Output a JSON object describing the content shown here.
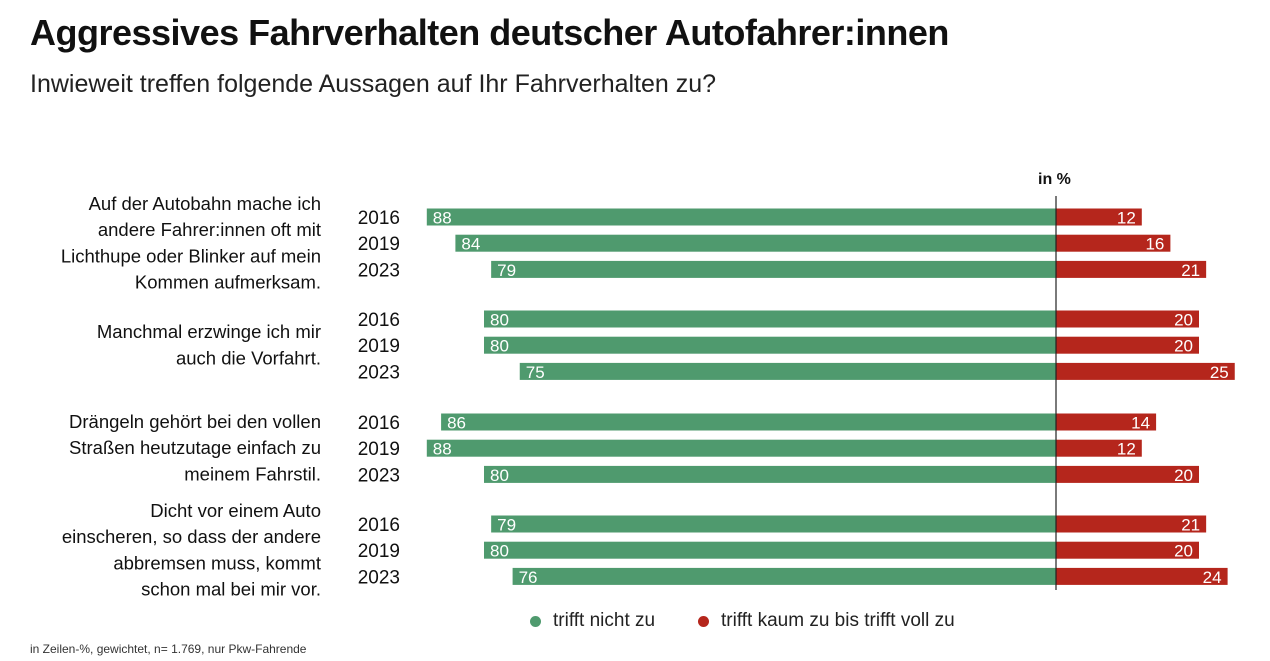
{
  "title": "Aggressives Fahrverhalten deutscher Autofahrer:innen",
  "subtitle": "Inwieweit treffen folgende Aussagen auf Ihr Fahrverhalten zu?",
  "unit_label": "in %",
  "footnote": "in Zeilen-%, gewichtet, n= 1.769, nur Pkw-Fahrende",
  "colors": {
    "green": "#4f9a6e",
    "red": "#b5261c"
  },
  "chart_data": {
    "type": "bar",
    "orientation": "horizontal diverging",
    "unit": "%",
    "groups": [
      {
        "statement": [
          "Auf der Autobahn mache ich",
          "andere Fahrer:innen oft mit",
          "Lichthupe oder Blinker auf mein",
          "Kommen aufmerksam."
        ],
        "years": [
          "2016",
          "2019",
          "2023"
        ],
        "trifft_nicht_zu": [
          88,
          84,
          79
        ],
        "trifft_zu": [
          12,
          16,
          21
        ]
      },
      {
        "statement": [
          "Manchmal erzwinge ich mir",
          "auch die Vorfahrt."
        ],
        "years": [
          "2016",
          "2019",
          "2023"
        ],
        "trifft_nicht_zu": [
          80,
          80,
          75
        ],
        "trifft_zu": [
          20,
          20,
          25
        ]
      },
      {
        "statement": [
          "Drängeln gehört bei den vollen",
          "Straßen heutzutage einfach zu",
          "meinem Fahrstil."
        ],
        "years": [
          "2016",
          "2019",
          "2023"
        ],
        "trifft_nicht_zu": [
          86,
          88,
          80
        ],
        "trifft_zu": [
          14,
          12,
          20
        ]
      },
      {
        "statement": [
          "Dicht vor einem Auto",
          "einscheren, so dass der andere",
          "abbremsen muss, kommt",
          "schon mal bei mir vor."
        ],
        "years": [
          "2016",
          "2019",
          "2023"
        ],
        "trifft_nicht_zu": [
          79,
          80,
          76
        ],
        "trifft_zu": [
          21,
          20,
          24
        ]
      }
    ],
    "series": [
      {
        "name": "trifft nicht zu",
        "color": "#4f9a6e"
      },
      {
        "name": "trifft kaum zu bis trifft voll zu",
        "color": "#b5261c"
      }
    ],
    "legend_position": "bottom"
  }
}
